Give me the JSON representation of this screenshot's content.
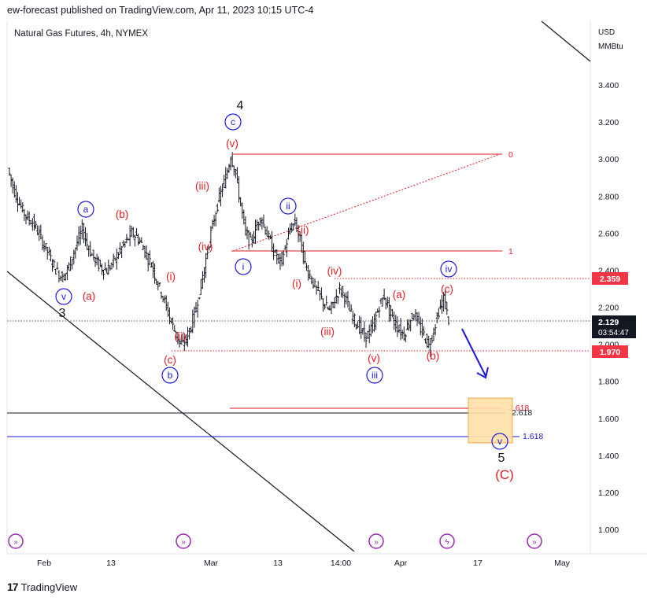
{
  "header": {
    "publisher_line": "ew-forecast published on TradingView.com, Apr 11, 2023 10:15 UTC-4",
    "instrument": "Natural Gas Futures, 4h, NYMEX"
  },
  "footer": {
    "brand": "TradingView",
    "brand_mark": "17"
  },
  "colors": {
    "red": "#e31b23",
    "blue": "#1a1ad6",
    "black": "#131722",
    "grid_dot": "#888888",
    "price_tag": "#f23645",
    "last_tag": "#131722",
    "target_box": "#ffe0a8",
    "target_border": "#f0a030"
  },
  "chart_data": {
    "type": "candlestick",
    "title": "Natural Gas Futures, 4h, NYMEX",
    "y_unit_top": "USD",
    "y_unit_bottom": "MMBtu",
    "ylim": [
      0.85,
      3.5
    ],
    "y_ticks": [
      "3.400",
      "3.200",
      "3.000",
      "2.800",
      "2.600",
      "2.400",
      "2.200",
      "2.000",
      "1.800",
      "1.600",
      "1.400",
      "1.200",
      "1.000"
    ],
    "x_ticks": [
      "Feb",
      "13",
      "Mar",
      "13",
      "14:00",
      "Apr",
      "17",
      "May"
    ],
    "price_tags": {
      "upper": "2.359",
      "last": "2.129",
      "countdown": "03:54:47",
      "lower": "1.970"
    },
    "fib_labels": [
      "0",
      "1",
      "2.618",
      "2.618",
      "1.618"
    ],
    "fib_values": [
      3.03,
      2.51,
      1.66,
      1.64,
      1.51
    ],
    "wave_labels_red": [
      "(a)",
      "(b)",
      "(c)",
      "(i)",
      "(ii)",
      "(iii)",
      "(iv)",
      "(v)",
      "(i)",
      "(ii)",
      "(iii)",
      "(iv)",
      "(v)",
      "(a)",
      "(b)",
      "(c)",
      "(C)"
    ],
    "wave_labels_blue": [
      "v",
      "a",
      "b",
      "c",
      "i",
      "ii",
      "iii",
      "iv",
      "v"
    ],
    "wave_labels_black": [
      "3",
      "4",
      "5"
    ],
    "price_series": [
      2.95,
      2.85,
      2.78,
      2.72,
      2.68,
      2.66,
      2.61,
      2.55,
      2.5,
      2.44,
      2.39,
      2.36,
      2.4,
      2.47,
      2.55,
      2.62,
      2.54,
      2.48,
      2.44,
      2.41,
      2.4,
      2.43,
      2.48,
      2.52,
      2.56,
      2.6,
      2.58,
      2.54,
      2.48,
      2.43,
      2.35,
      2.28,
      2.2,
      2.12,
      2.05,
      1.99,
      2.03,
      2.1,
      2.2,
      2.32,
      2.46,
      2.6,
      2.72,
      2.82,
      2.9,
      3.02,
      2.92,
      2.75,
      2.6,
      2.55,
      2.62,
      2.69,
      2.62,
      2.55,
      2.48,
      2.44,
      2.52,
      2.62,
      2.66,
      2.56,
      2.43,
      2.37,
      2.31,
      2.26,
      2.21,
      2.18,
      2.24,
      2.3,
      2.26,
      2.18,
      2.13,
      2.09,
      2.04,
      2.06,
      2.12,
      2.21,
      2.26,
      2.18,
      2.12,
      2.08,
      2.05,
      2.12,
      2.17,
      2.1,
      2.05,
      1.99,
      2.08,
      2.18,
      2.25,
      2.13
    ]
  }
}
